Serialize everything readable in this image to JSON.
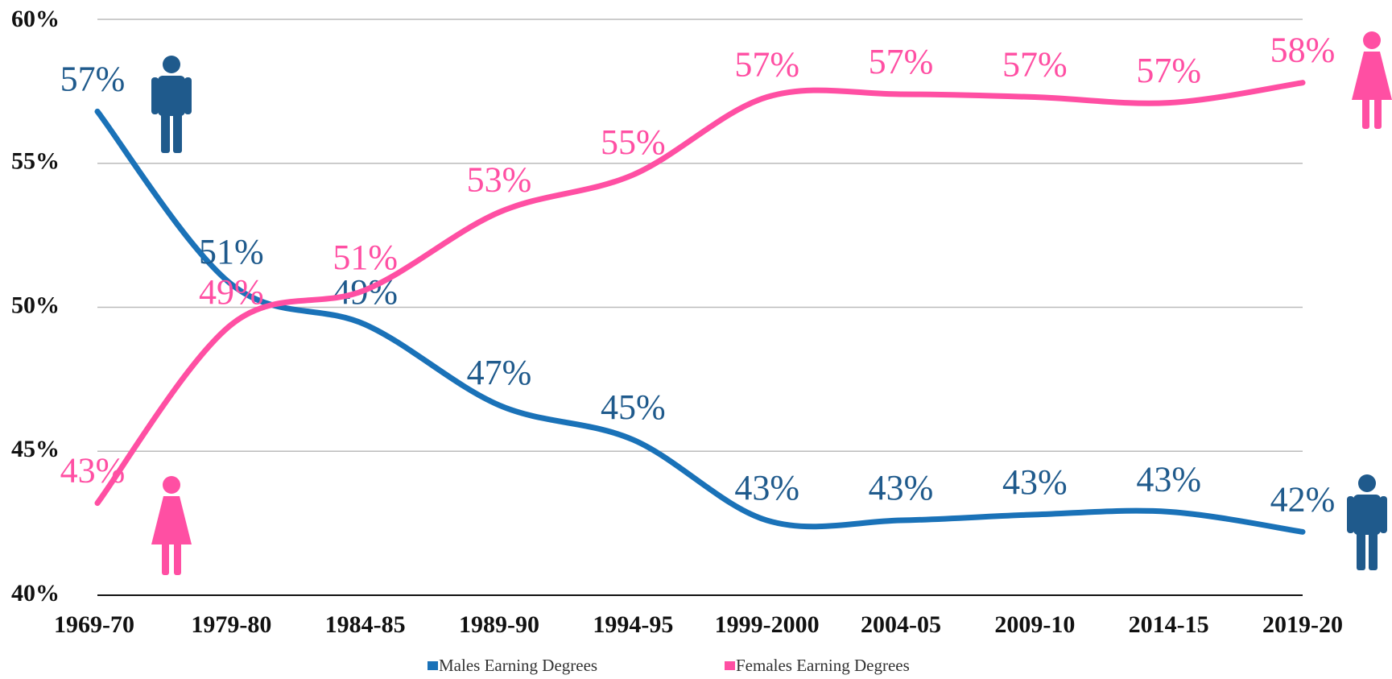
{
  "chart_data": {
    "type": "line",
    "categories": [
      "1969-70",
      "1979-80",
      "1984-85",
      "1989-90",
      "1994-95",
      "1999-2000",
      "2004-05",
      "2009-10",
      "2014-15",
      "2019-20"
    ],
    "series": [
      {
        "name": "Males Earning Degrees",
        "color": "#1a72b8",
        "label_color": "#1f5a8c",
        "values": [
          56.8,
          50.8,
          49.4,
          46.6,
          45.4,
          42.6,
          42.6,
          42.8,
          42.9,
          42.2
        ],
        "value_labels": [
          "57%",
          "51%",
          "49%",
          "47%",
          "45%",
          "43%",
          "43%",
          "43%",
          "43%",
          "42%"
        ]
      },
      {
        "name": "Females Earning Degrees",
        "color": "#ff4fa3",
        "label_color": "#ff4fa3",
        "values": [
          43.2,
          49.4,
          50.6,
          53.3,
          54.6,
          57.3,
          57.4,
          57.3,
          57.1,
          57.8
        ],
        "value_labels": [
          "43%",
          "49%",
          "51%",
          "53%",
          "55%",
          "57%",
          "57%",
          "57%",
          "57%",
          "58%"
        ]
      }
    ],
    "ylim": [
      40,
      60
    ],
    "yticks": [
      {
        "value": 40,
        "label": "40%"
      },
      {
        "value": 45,
        "label": "45%"
      },
      {
        "value": 50,
        "label": "50%"
      },
      {
        "value": 55,
        "label": "55%"
      },
      {
        "value": 60,
        "label": "60%"
      }
    ],
    "grid": true,
    "legend": "bottom"
  }
}
